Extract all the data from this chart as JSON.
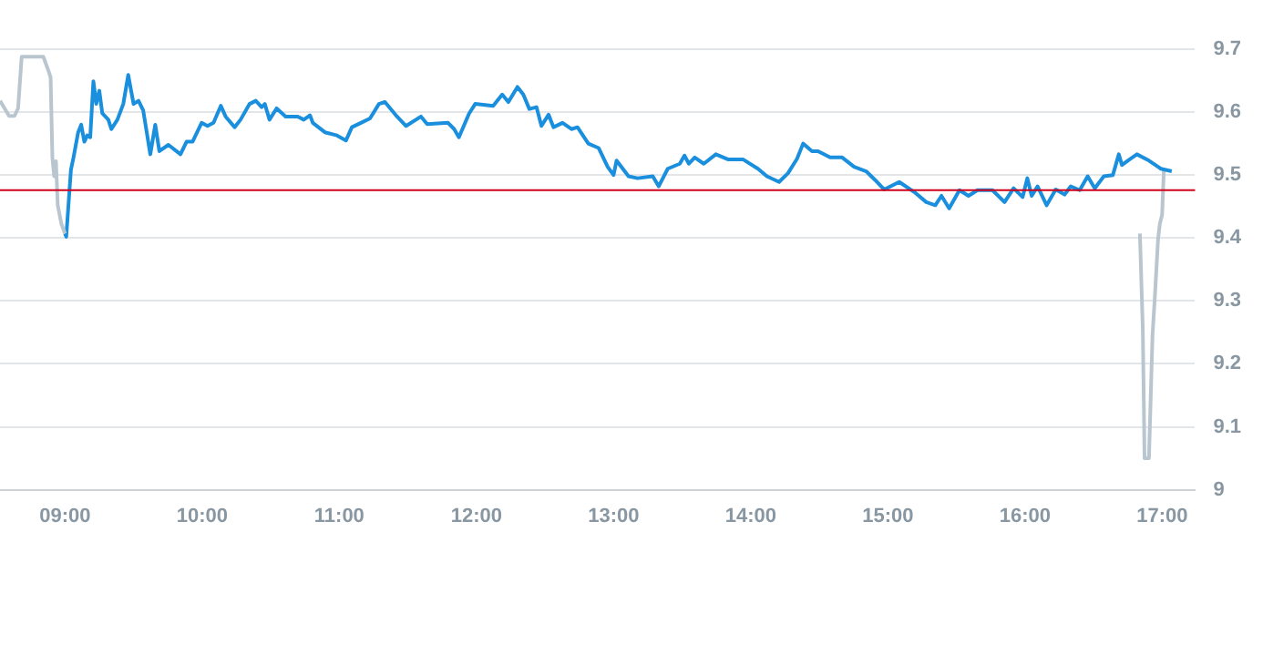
{
  "chart_data": {
    "type": "line",
    "xlim": [
      8.526,
      17.24
    ],
    "xticks": [
      {
        "value": 9,
        "label": "09:00"
      },
      {
        "value": 10,
        "label": "10:00"
      },
      {
        "value": 11,
        "label": "11:00"
      },
      {
        "value": 12,
        "label": "12:00"
      },
      {
        "value": 13,
        "label": "13:00"
      },
      {
        "value": 14,
        "label": "14:00"
      },
      {
        "value": 15,
        "label": "15:00"
      },
      {
        "value": 16,
        "label": "16:00"
      },
      {
        "value": 17,
        "label": "17:00"
      }
    ],
    "ylim": [
      9,
      9.7
    ],
    "yticks": [
      9,
      9.1,
      9.2,
      9.3,
      9.4,
      9.5,
      9.6,
      9.7
    ],
    "grid": "y",
    "legend": false,
    "marker": "none",
    "line_style": "solid",
    "ref_lines": [
      {
        "axis": "y",
        "value": 9.476,
        "color": "#d0021b"
      }
    ],
    "series": [
      {
        "color": "#b9c6cf",
        "x": [
          8.526,
          8.592,
          8.632,
          8.658,
          8.684,
          8.711,
          8.842,
          8.882,
          8.895,
          8.908,
          8.921,
          8.934,
          8.947,
          8.974,
          9.0
        ],
        "values": [
          9.618,
          9.594,
          9.594,
          9.606,
          9.688,
          9.688,
          9.688,
          9.664,
          9.655,
          9.528,
          9.498,
          9.522,
          9.452,
          9.422,
          9.407
        ]
      },
      {
        "color": "#1a8fdd",
        "x": [
          9.0,
          9.009,
          9.043,
          9.062,
          9.096,
          9.118,
          9.141,
          9.162,
          9.184,
          9.207,
          9.228,
          9.25,
          9.272,
          9.316,
          9.338,
          9.382,
          9.425,
          9.461,
          9.5,
          9.536,
          9.57,
          9.622,
          9.658,
          9.688,
          9.754,
          9.842,
          9.886,
          9.93,
          9.996,
          10.039,
          10.083,
          10.136,
          10.171,
          10.237,
          10.28,
          10.346,
          10.391,
          10.434,
          10.457,
          10.491,
          10.543,
          10.609,
          10.697,
          10.741,
          10.786,
          10.807,
          10.895,
          10.983,
          11.049,
          11.092,
          11.158,
          11.224,
          11.289,
          11.333,
          11.421,
          11.487,
          11.596,
          11.641,
          11.793,
          11.838,
          11.872,
          11.947,
          11.991,
          12.122,
          12.188,
          12.233,
          12.299,
          12.342,
          12.386,
          12.438,
          12.474,
          12.526,
          12.562,
          12.628,
          12.693,
          12.737,
          12.816,
          12.891,
          12.957,
          13.0,
          13.022,
          13.109,
          13.175,
          13.286,
          13.329,
          13.395,
          13.483,
          13.517,
          13.549,
          13.592,
          13.658,
          13.746,
          13.833,
          13.943,
          14.053,
          14.118,
          14.207,
          14.272,
          14.338,
          14.382,
          14.447,
          14.491,
          14.579,
          14.667,
          14.754,
          14.842,
          14.908,
          14.974,
          15.083,
          15.193,
          15.28,
          15.346,
          15.391,
          15.447,
          15.522,
          15.588,
          15.654,
          15.763,
          15.851,
          15.917,
          15.983,
          16.017,
          16.049,
          16.092,
          16.158,
          16.224,
          16.289,
          16.333,
          16.399,
          16.457,
          16.509,
          16.575,
          16.641,
          16.684,
          16.707,
          16.75,
          16.816,
          16.904,
          16.991,
          17.07
        ],
        "values": [
          9.407,
          9.402,
          9.508,
          9.528,
          9.568,
          9.58,
          9.553,
          9.563,
          9.56,
          9.649,
          9.613,
          9.634,
          9.598,
          9.588,
          9.573,
          9.588,
          9.613,
          9.659,
          9.613,
          9.618,
          9.603,
          9.533,
          9.58,
          9.538,
          9.548,
          9.533,
          9.553,
          9.553,
          9.583,
          9.578,
          9.583,
          9.61,
          9.593,
          9.576,
          9.588,
          9.613,
          9.618,
          9.608,
          9.613,
          9.588,
          9.606,
          9.593,
          9.593,
          9.588,
          9.595,
          9.583,
          9.568,
          9.563,
          9.555,
          9.576,
          9.583,
          9.59,
          9.613,
          9.616,
          9.593,
          9.578,
          9.593,
          9.581,
          9.583,
          9.573,
          9.56,
          9.598,
          9.613,
          9.61,
          9.628,
          9.616,
          9.64,
          9.628,
          9.605,
          9.608,
          9.578,
          9.596,
          9.576,
          9.583,
          9.573,
          9.576,
          9.55,
          9.543,
          9.513,
          9.5,
          9.523,
          9.498,
          9.495,
          9.498,
          9.482,
          9.51,
          9.518,
          9.531,
          9.518,
          9.528,
          9.518,
          9.533,
          9.525,
          9.525,
          9.51,
          9.498,
          9.489,
          9.503,
          9.526,
          9.55,
          9.538,
          9.538,
          9.528,
          9.528,
          9.513,
          9.506,
          9.492,
          9.477,
          9.489,
          9.473,
          9.457,
          9.452,
          9.467,
          9.447,
          9.476,
          9.467,
          9.476,
          9.476,
          9.457,
          9.479,
          9.465,
          9.495,
          9.467,
          9.482,
          9.452,
          9.477,
          9.469,
          9.482,
          9.476,
          9.498,
          9.479,
          9.498,
          9.5,
          9.533,
          9.516,
          9.523,
          9.533,
          9.523,
          9.51,
          9.506
        ]
      },
      {
        "color": "#b9c6cf",
        "x": [
          16.838,
          16.859,
          16.872,
          16.904,
          16.93,
          16.947,
          16.97,
          16.983,
          17.0,
          17.013
        ],
        "values": [
          9.407,
          9.256,
          9.05,
          9.05,
          9.246,
          9.306,
          9.397,
          9.422,
          9.437,
          9.51
        ]
      }
    ]
  }
}
